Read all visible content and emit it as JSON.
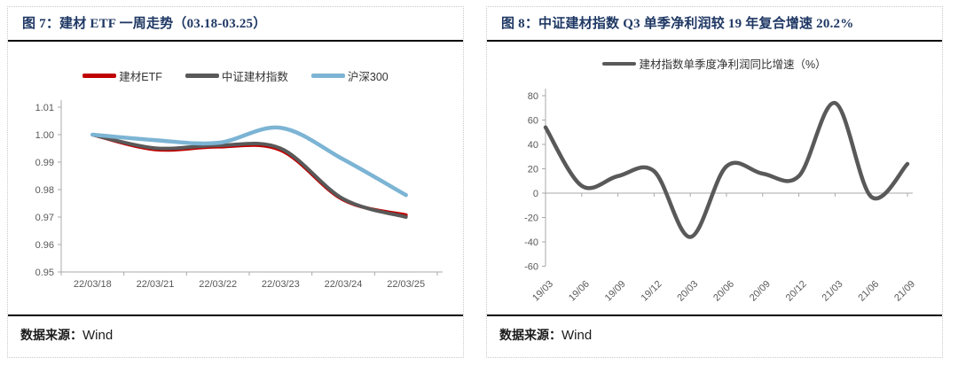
{
  "panels": [
    {
      "title": "图 7：建材 ETF 一周走势（03.18-03.25）",
      "source_label": "数据来源：",
      "source_value": "Wind"
    },
    {
      "title": "图 8：中证建材指数 Q3 单季净利润较 19 年复合增速 20.2%",
      "source_label": "数据来源：",
      "source_value": "Wind"
    }
  ],
  "colors": {
    "title_navy": "#1F3864",
    "axis_line": "#A9A9A9",
    "tick_text": "#595959",
    "etf_red": "#C00000",
    "index_gray": "#595959",
    "hs300_blue": "#7CB4D4"
  },
  "chart_data": [
    {
      "type": "line",
      "title": "建材 ETF 一周走势（03.18-03.25）",
      "categories": [
        "22/03/18",
        "22/03/21",
        "22/03/22",
        "22/03/23",
        "22/03/24",
        "22/03/25"
      ],
      "series": [
        {
          "name": "建材ETF",
          "color": "#C00000",
          "stroke_width": 4,
          "values": [
            1.0,
            0.9946,
            0.9956,
            0.9944,
            0.9763,
            0.9707
          ]
        },
        {
          "name": "中证建材指数",
          "color": "#595959",
          "stroke_width": 4,
          "values": [
            1.0,
            0.9951,
            0.9961,
            0.995,
            0.9766,
            0.97
          ]
        },
        {
          "name": "沪深300",
          "color": "#7CB4D4",
          "stroke_width": 4.5,
          "values": [
            1.0,
            0.998,
            0.997,
            1.0025,
            0.991,
            0.978
          ]
        }
      ],
      "ylim": [
        0.95,
        1.01
      ],
      "ystep": 0.01,
      "y_decimals": 2,
      "x_axis_at": 0.95,
      "point_mode": "between",
      "x_label_rotate": 0,
      "grid": false,
      "legend_position": "top"
    },
    {
      "type": "line",
      "title": "中证建材指数 Q3 单季净利润较 19 年复合增速 20.2%",
      "categories": [
        "19/03",
        "19/06",
        "19/09",
        "19/12",
        "20/03",
        "20/06",
        "20/09",
        "20/12",
        "21/03",
        "21/06",
        "21/09"
      ],
      "series": [
        {
          "name": "建材指数单季度净利润同比增速（%）",
          "color": "#595959",
          "stroke_width": 4.5,
          "values": [
            54,
            6,
            14,
            18,
            -36,
            22,
            16,
            14,
            74,
            -3,
            24
          ]
        }
      ],
      "ylim": [
        -60,
        80
      ],
      "ystep": 20,
      "y_decimals": 0,
      "x_axis_at": 0,
      "point_mode": "on",
      "x_label_rotate": -45,
      "grid": false,
      "legend_position": "top"
    }
  ]
}
